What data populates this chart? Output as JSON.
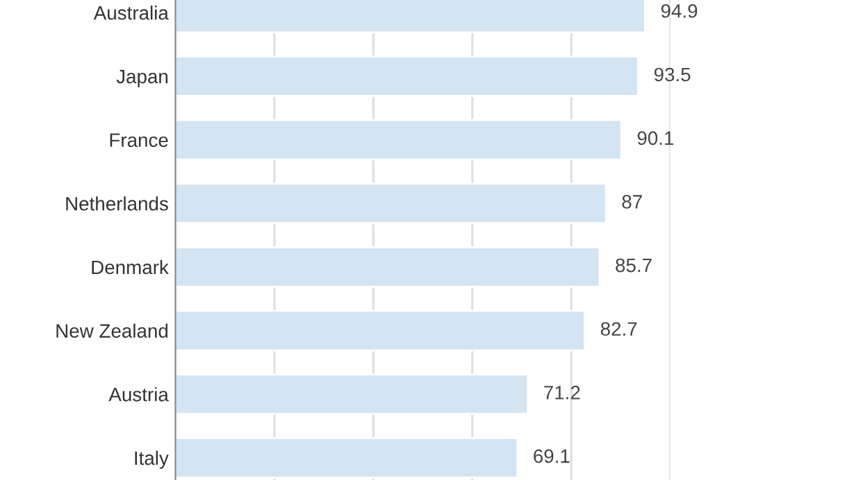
{
  "chart_data": {
    "type": "bar",
    "orientation": "horizontal",
    "categories": [
      "Australia",
      "Japan",
      "France",
      "Netherlands",
      "Denmark",
      "New Zealand",
      "Austria",
      "Italy"
    ],
    "values": [
      94.9,
      93.5,
      90.1,
      87,
      85.7,
      82.7,
      71.2,
      69.1
    ],
    "color": "#d3e4f3",
    "data_labels": true,
    "xlim": [
      0,
      100
    ],
    "xticks": [
      {
        "value": 20,
        "label": null
      },
      {
        "value": 40,
        "label": null
      },
      {
        "value": 60,
        "label": null
      },
      {
        "value": 80,
        "label": null
      },
      {
        "value": 100,
        "label": null
      }
    ],
    "tick_labels": "y",
    "grid": "x"
  }
}
